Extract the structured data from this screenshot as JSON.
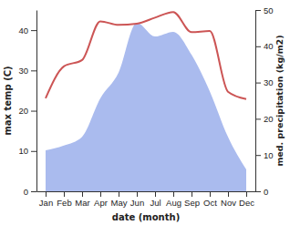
{
  "chart_data": {
    "type": "line",
    "categories": [
      "Jan",
      "Feb",
      "Mar",
      "Apr",
      "May",
      "Jun",
      "Jul",
      "Aug",
      "Sep",
      "Oct",
      "Nov",
      "Dec"
    ],
    "x_label": "date (month)",
    "y_label": "max temp (C)",
    "y2_label": "med. precipitation (kg/m2)",
    "ylim": [
      0,
      45
    ],
    "yticks": [
      0,
      10,
      20,
      30,
      40
    ],
    "y2lim": [
      0,
      50
    ],
    "y2ticks": [
      0,
      10,
      20,
      30,
      40,
      50
    ],
    "series": [
      {
        "name": "max temp",
        "type": "line",
        "color": "#cc5555",
        "values": [
          23.1,
          31.0,
          32.6,
          42.2,
          41.3,
          41.6,
          43.1,
          44.5,
          39.5,
          39.8,
          24.7,
          22.9
        ]
      },
      {
        "name": "med. precipitation",
        "type": "area",
        "axis": "y2",
        "color": "#aabbee",
        "values": [
          11.3,
          12.6,
          15.0,
          25.6,
          32.7,
          46.5,
          42.7,
          44.0,
          37.7,
          27.6,
          15.0,
          6.0
        ]
      }
    ]
  }
}
